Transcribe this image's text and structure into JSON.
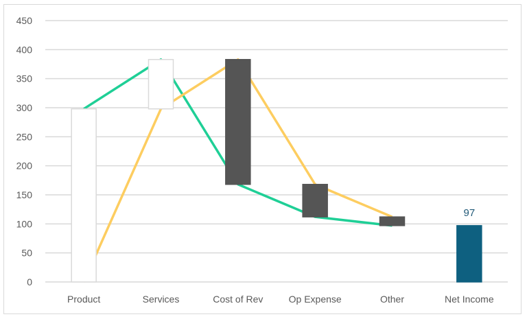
{
  "chart_data": {
    "type": "waterfall",
    "title": "",
    "xlabel": "",
    "ylabel": "",
    "categories": [
      "Product",
      "Services",
      "Cost of Rev",
      "Op Expense",
      "Other",
      "Net Income"
    ],
    "ylim": [
      0,
      450
    ],
    "yticks": [
      0,
      50,
      100,
      150,
      200,
      250,
      300,
      350,
      400,
      450
    ],
    "grid": true,
    "legend": "none",
    "bars": [
      {
        "category": "Product",
        "start": 0,
        "end": 298,
        "change": 298,
        "kind": "increase"
      },
      {
        "category": "Services",
        "start": 298,
        "end": 383,
        "change": 85,
        "kind": "increase"
      },
      {
        "category": "Cost of Rev",
        "start": 383,
        "end": 168,
        "change": -215,
        "kind": "decrease"
      },
      {
        "category": "Op Expense",
        "start": 168,
        "end": 112,
        "change": -56,
        "kind": "decrease"
      },
      {
        "category": "Other",
        "start": 112,
        "end": 97,
        "change": -15,
        "kind": "decrease"
      },
      {
        "category": "Net Income",
        "start": 0,
        "end": 97,
        "change": 97,
        "kind": "total"
      }
    ],
    "series": [
      {
        "name": "green-line",
        "color": "#1fcf96",
        "values": [
          298,
          383,
          168,
          112,
          97
        ]
      },
      {
        "name": "orange-line",
        "color": "#fdcd60",
        "values": [
          0,
          298,
          383,
          168,
          112
        ]
      }
    ],
    "data_labels": [
      {
        "category": "Net Income",
        "text": "97"
      }
    ],
    "colors": {
      "increase_fill": "#ffffff",
      "increase_border": "#d9d9d9",
      "decrease_fill": "#555555",
      "total_fill": "#0e6080",
      "grid": "#d9d9d9",
      "label": "#595959"
    }
  }
}
